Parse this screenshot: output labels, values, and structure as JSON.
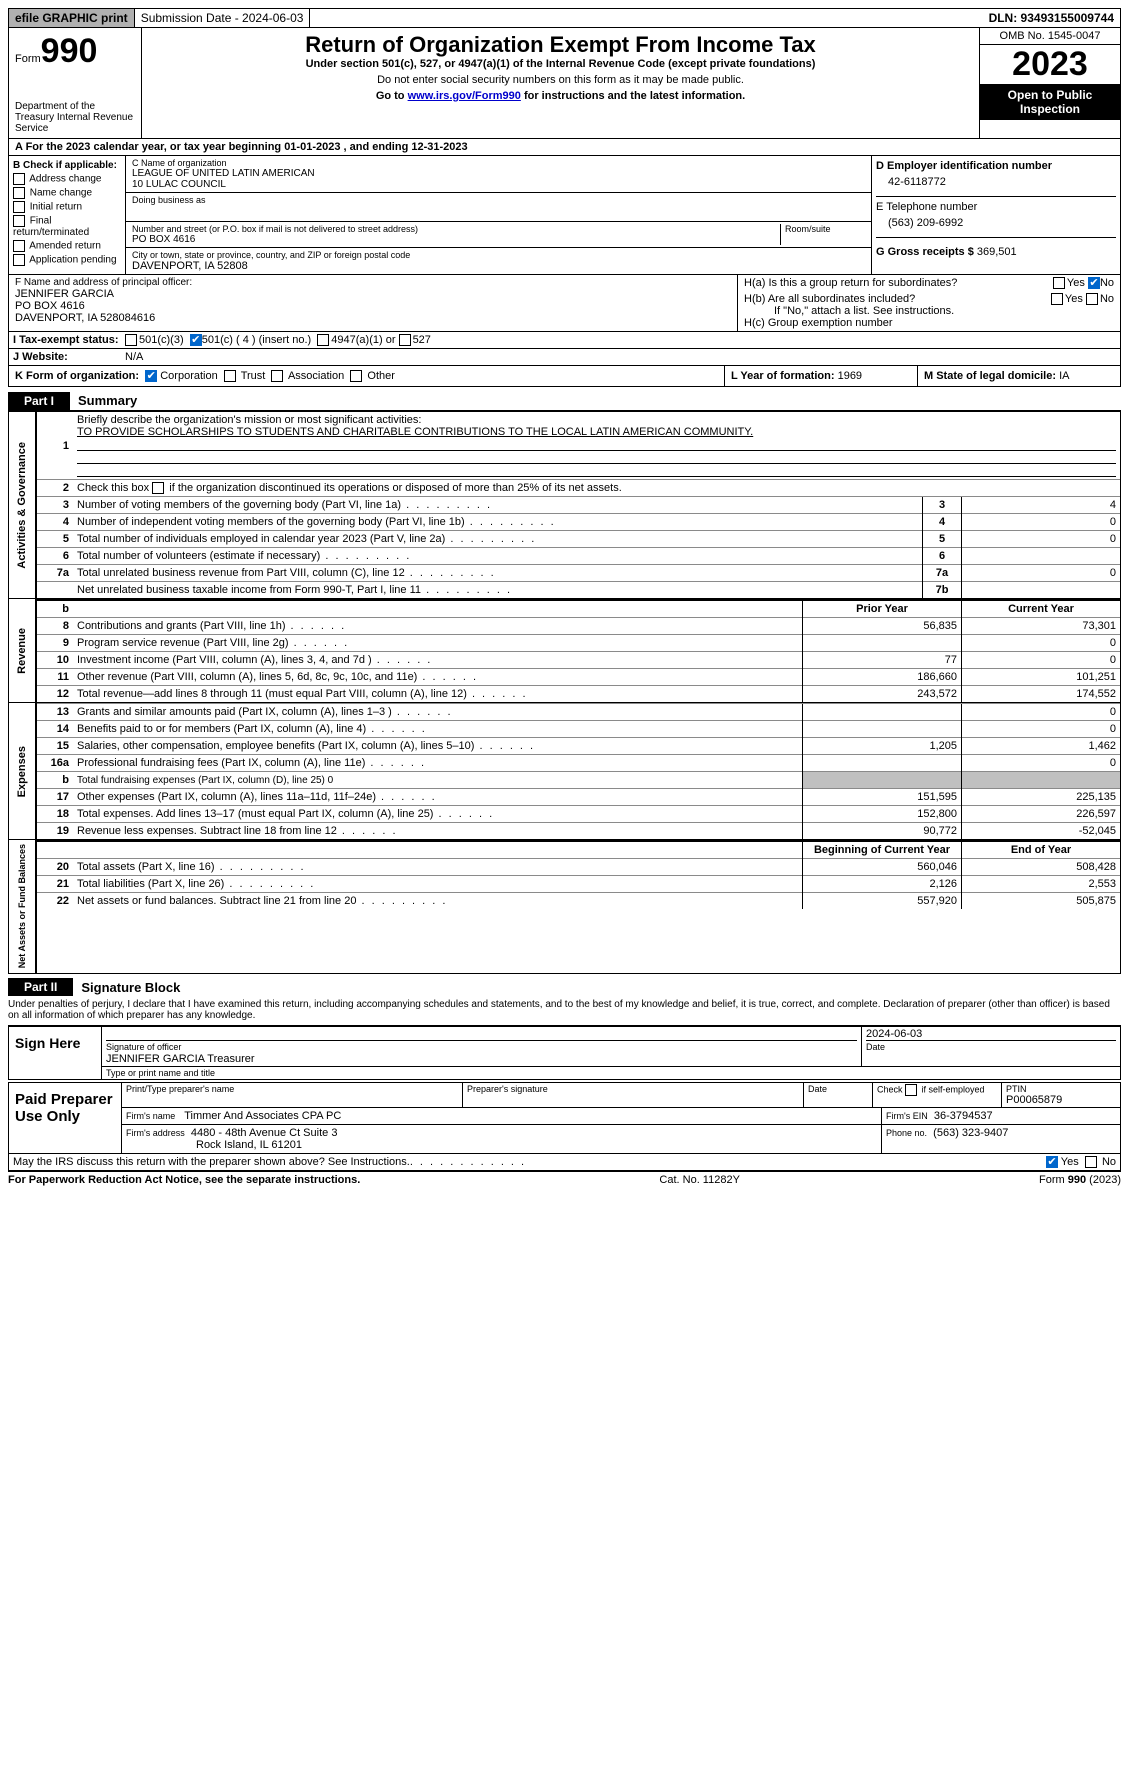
{
  "topbar": {
    "efile": "efile GRAPHIC print",
    "submission": "Submission Date - 2024-06-03",
    "dln": "DLN: 93493155009744"
  },
  "header": {
    "form_word": "Form",
    "form_num": "990",
    "dept": "Department of the Treasury Internal Revenue Service",
    "title": "Return of Organization Exempt From Income Tax",
    "sub1": "Under section 501(c), 527, or 4947(a)(1) of the Internal Revenue Code (except private foundations)",
    "sub2": "Do not enter social security numbers on this form as it may be made public.",
    "sub3_pre": "Go to ",
    "sub3_link": "www.irs.gov/Form990",
    "sub3_post": " for instructions and the latest information.",
    "omb": "OMB No. 1545-0047",
    "year": "2023",
    "inspect": "Open to Public Inspection"
  },
  "section_a": "A For the 2023 calendar year, or tax year beginning 01-01-2023    , and ending 12-31-2023",
  "col_b": {
    "label": "B Check if applicable:",
    "items": [
      "Address change",
      "Name change",
      "Initial return",
      "Final return/terminated",
      "Amended return",
      "Application pending"
    ]
  },
  "col_c": {
    "c_label": "C Name of organization",
    "org_name": "LEAGUE OF UNITED LATIN AMERICAN\n10 LULAC COUNCIL",
    "dba_label": "Doing business as",
    "dba": "",
    "street_label": "Number and street (or P.O. box if mail is not delivered to street address)",
    "street": "PO BOX 4616",
    "room_label": "Room/suite",
    "city_label": "City or town, state or province, country, and ZIP or foreign postal code",
    "city": "DAVENPORT, IA  52808"
  },
  "col_d": {
    "d_label": "D Employer identification number",
    "ein": "42-6118772",
    "e_label": "E Telephone number",
    "phone": "(563) 209-6992",
    "g_label": "G Gross receipts $",
    "gross": "369,501"
  },
  "officer": {
    "f_label": "F  Name and address of principal officer:",
    "name": "JENNIFER GARCIA",
    "addr1": "PO BOX 4616",
    "addr2": "DAVENPORT, IA  528084616"
  },
  "h_section": {
    "ha": "H(a)  Is this a group return for subordinates?",
    "hb": "H(b)  Are all subordinates included?",
    "hb_note": "If \"No,\" attach a list. See instructions.",
    "hc": "H(c)  Group exemption number",
    "yes": "Yes",
    "no": "No"
  },
  "tax_status": {
    "label": "I  Tax-exempt status:",
    "opt1": "501(c)(3)",
    "opt2": "501(c) ( 4 ) (insert no.)",
    "opt3": "4947(a)(1) or",
    "opt4": "527"
  },
  "website": {
    "label": "J  Website:",
    "value": "N/A"
  },
  "k_row": {
    "label": "K Form of organization:",
    "opts": [
      "Corporation",
      "Trust",
      "Association",
      "Other"
    ],
    "l_label": "L Year of formation:",
    "l_val": "1969",
    "m_label": "M State of legal domicile:",
    "m_val": "IA"
  },
  "part1": {
    "tab": "Part I",
    "title": "Summary"
  },
  "gov": {
    "label": "Activities & Governance",
    "line1_label": "Briefly describe the organization's mission or most significant activities:",
    "mission": "TO PROVIDE SCHOLARSHIPS TO STUDENTS AND CHARITABLE CONTRIBUTIONS TO THE LOCAL LATIN AMERICAN COMMUNITY.",
    "line2": "Check this box       if the organization discontinued its operations or disposed of more than 25% of its net assets.",
    "lines": [
      {
        "n": "3",
        "t": "Number of voting members of the governing body (Part VI, line 1a)",
        "k": "3",
        "v": "4"
      },
      {
        "n": "4",
        "t": "Number of independent voting members of the governing body (Part VI, line 1b)",
        "k": "4",
        "v": "0"
      },
      {
        "n": "5",
        "t": "Total number of individuals employed in calendar year 2023 (Part V, line 2a)",
        "k": "5",
        "v": "0"
      },
      {
        "n": "6",
        "t": "Total number of volunteers (estimate if necessary)",
        "k": "6",
        "v": ""
      },
      {
        "n": "7a",
        "t": "Total unrelated business revenue from Part VIII, column (C), line 12",
        "k": "7a",
        "v": "0"
      },
      {
        "n": "",
        "t": "Net unrelated business taxable income from Form 990-T, Part I, line 11",
        "k": "7b",
        "v": ""
      }
    ]
  },
  "rev": {
    "label": "Revenue",
    "hdr_prior": "Prior Year",
    "hdr_curr": "Current Year",
    "lines": [
      {
        "n": "8",
        "t": "Contributions and grants (Part VIII, line 1h)",
        "p": "56,835",
        "c": "73,301"
      },
      {
        "n": "9",
        "t": "Program service revenue (Part VIII, line 2g)",
        "p": "",
        "c": "0"
      },
      {
        "n": "10",
        "t": "Investment income (Part VIII, column (A), lines 3, 4, and 7d )",
        "p": "77",
        "c": "0"
      },
      {
        "n": "11",
        "t": "Other revenue (Part VIII, column (A), lines 5, 6d, 8c, 9c, 10c, and 11e)",
        "p": "186,660",
        "c": "101,251"
      },
      {
        "n": "12",
        "t": "Total revenue—add lines 8 through 11 (must equal Part VIII, column (A), line 12)",
        "p": "243,572",
        "c": "174,552"
      }
    ]
  },
  "exp": {
    "label": "Expenses",
    "lines": [
      {
        "n": "13",
        "t": "Grants and similar amounts paid (Part IX, column (A), lines 1–3 )",
        "p": "",
        "c": "0"
      },
      {
        "n": "14",
        "t": "Benefits paid to or for members (Part IX, column (A), line 4)",
        "p": "",
        "c": "0"
      },
      {
        "n": "15",
        "t": "Salaries, other compensation, employee benefits (Part IX, column (A), lines 5–10)",
        "p": "1,205",
        "c": "1,462"
      },
      {
        "n": "16a",
        "t": "Professional fundraising fees (Part IX, column (A), line 11e)",
        "p": "",
        "c": "0"
      },
      {
        "n": "b",
        "t": "Total fundraising expenses (Part IX, column (D), line 25) 0",
        "p": "GRAY",
        "c": "GRAY"
      },
      {
        "n": "17",
        "t": "Other expenses (Part IX, column (A), lines 11a–11d, 11f–24e)",
        "p": "151,595",
        "c": "225,135"
      },
      {
        "n": "18",
        "t": "Total expenses. Add lines 13–17 (must equal Part IX, column (A), line 25)",
        "p": "152,800",
        "c": "226,597"
      },
      {
        "n": "19",
        "t": "Revenue less expenses. Subtract line 18 from line 12",
        "p": "90,772",
        "c": "-52,045"
      }
    ]
  },
  "net": {
    "label": "Net Assets or Fund Balances",
    "hdr_begin": "Beginning of Current Year",
    "hdr_end": "End of Year",
    "lines": [
      {
        "n": "20",
        "t": "Total assets (Part X, line 16)",
        "p": "560,046",
        "c": "508,428"
      },
      {
        "n": "21",
        "t": "Total liabilities (Part X, line 26)",
        "p": "2,126",
        "c": "2,553"
      },
      {
        "n": "22",
        "t": "Net assets or fund balances. Subtract line 21 from line 20",
        "p": "557,920",
        "c": "505,875"
      }
    ]
  },
  "part2": {
    "tab": "Part II",
    "title": "Signature Block"
  },
  "perjury": "Under penalties of perjury, I declare that I have examined this return, including accompanying schedules and statements, and to the best of my knowledge and belief, it is true, correct, and complete. Declaration of preparer (other than officer) is based on all information of which preparer has any knowledge.",
  "sign": {
    "here": "Sign Here",
    "sig_label": "Signature of officer",
    "officer": "JENNIFER GARCIA  Treasurer",
    "type_label": "Type or print name and title",
    "date_label": "Date",
    "date": "2024-06-03"
  },
  "paid": {
    "label": "Paid Preparer Use Only",
    "print_label": "Print/Type preparer's name",
    "sig_label": "Preparer's signature",
    "date_label": "Date",
    "check_label": "Check         if self-employed",
    "ptin_label": "PTIN",
    "ptin": "P00065879",
    "firm_name_label": "Firm's name",
    "firm_name": "Timmer And Associates CPA PC",
    "firm_ein_label": "Firm's EIN",
    "firm_ein": "36-3794537",
    "firm_addr_label": "Firm's address",
    "firm_addr1": "4480 - 48th Avenue Ct Suite 3",
    "firm_addr2": "Rock Island, IL  61201",
    "phone_label": "Phone no.",
    "phone": "(563) 323-9407"
  },
  "discuss": "May the IRS discuss this return with the preparer shown above? See Instructions.",
  "footer": {
    "left": "For Paperwork Reduction Act Notice, see the separate instructions.",
    "mid": "Cat. No. 11282Y",
    "right_pre": "Form ",
    "right_bold": "990",
    "right_post": " (2023)"
  }
}
